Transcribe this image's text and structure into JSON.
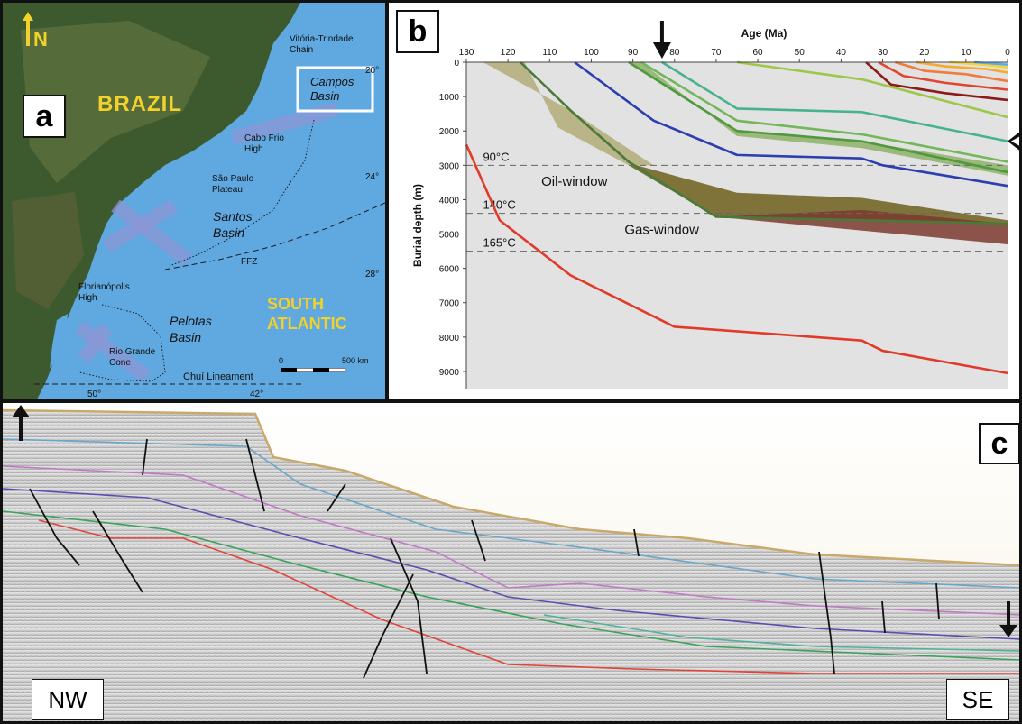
{
  "panels": {
    "a": "a",
    "b": "b",
    "c": "c"
  },
  "map": {
    "north": "N",
    "country": "BRAZIL",
    "ocean_line1": "SOUTH",
    "ocean_line2": "ATLANTIC",
    "chain_line1": "Vitória-Trindade",
    "chain_line2": "Chain",
    "campos_line1": "Campos",
    "campos_line2": "Basin",
    "cabofrio_line1": "Cabo Frio",
    "cabofrio_line2": "High",
    "saopaulo_line1": "São Paulo",
    "saopaulo_line2": "Plateau",
    "santos_line1": "Santos",
    "santos_line2": "Basin",
    "ffz": "FFZ",
    "floripa_line1": "Florianópolis",
    "floripa_line2": "High",
    "pelotas_line1": "Pelotas",
    "pelotas_line2": "Basin",
    "riogrande_line1": "Rio Grande",
    "riogrande_line2": "Cone",
    "chui": "Chuí Lineament",
    "scale_zero": "0",
    "scale_km": "500 km",
    "lat20": "20°",
    "lat24": "24°",
    "lat28": "28°",
    "lon50": "50°",
    "lon42": "42°",
    "colors": {
      "ocean": "#5fa8e0",
      "land": "#3d5a2e",
      "label_yellow": "#f2d12a",
      "basin_box": "#ffffff"
    }
  },
  "chart_data": {
    "type": "line",
    "xlabel": "Age (Ma)",
    "ylabel": "Burial depth (m)",
    "xlim": [
      130,
      0
    ],
    "ylim": [
      0,
      9500
    ],
    "x_ticks": [
      130,
      120,
      110,
      100,
      90,
      80,
      70,
      60,
      50,
      40,
      30,
      20,
      10,
      0
    ],
    "y_ticks": [
      0,
      1000,
      2000,
      3000,
      4000,
      5000,
      6000,
      7000,
      8000,
      9000
    ],
    "isotherms": [
      {
        "label": "90°C",
        "depth": 3000
      },
      {
        "label": "140°C",
        "depth": 4400
      },
      {
        "label": "165°C",
        "depth": 5500
      }
    ],
    "window_labels": [
      {
        "text": "Oil-window",
        "age": 112,
        "depth": 3600
      },
      {
        "text": "Gas-window",
        "age": 92,
        "depth": 5000
      }
    ],
    "bands": [
      {
        "name": "early-olive",
        "color": "#b3ad79",
        "upper": [
          [
            126,
            0
          ],
          [
            105,
            1400
          ],
          [
            85,
            3000
          ]
        ],
        "lower": [
          [
            116,
            0
          ],
          [
            108,
            1900
          ],
          [
            91,
            3000
          ]
        ]
      },
      {
        "name": "oil-window",
        "color": "#6e5f1c",
        "upper": [
          [
            89,
            3000
          ],
          [
            65,
            3800
          ],
          [
            35,
            3950
          ],
          [
            0,
            4600
          ]
        ],
        "lower": [
          [
            91,
            3000
          ],
          [
            70,
            4500
          ],
          [
            0,
            4700
          ]
        ]
      },
      {
        "name": "gas-window",
        "color": "#7b3a2e",
        "upper": [
          [
            70,
            4500
          ],
          [
            35,
            4300
          ],
          [
            0,
            4700
          ]
        ],
        "lower": [
          [
            70,
            4500
          ],
          [
            0,
            5300
          ]
        ]
      },
      {
        "name": "mid-green",
        "color": "#8fb26a",
        "upper": [
          [
            91,
            0
          ],
          [
            65,
            2000
          ],
          [
            35,
            2300
          ],
          [
            0,
            3000
          ]
        ],
        "lower": [
          [
            88,
            0
          ],
          [
            65,
            2150
          ],
          [
            35,
            2500
          ],
          [
            0,
            3300
          ]
        ]
      }
    ],
    "series": [
      {
        "color": "#e23a2a",
        "points": [
          [
            130,
            2400
          ],
          [
            122,
            4600
          ],
          [
            105,
            6200
          ],
          [
            80,
            7700
          ],
          [
            35,
            8100
          ],
          [
            30,
            8400
          ],
          [
            0,
            9050
          ]
        ]
      },
      {
        "color": "#4a7a3a",
        "points": [
          [
            117,
            0
          ],
          [
            105,
            1400
          ],
          [
            91,
            2900
          ],
          [
            70,
            4500
          ],
          [
            0,
            4700
          ]
        ]
      },
      {
        "color": "#2c3fae",
        "points": [
          [
            104,
            0
          ],
          [
            85,
            1700
          ],
          [
            65,
            2700
          ],
          [
            35,
            2800
          ],
          [
            30,
            3000
          ],
          [
            0,
            3600
          ]
        ]
      },
      {
        "color": "#4f9a3e",
        "points": [
          [
            91,
            0
          ],
          [
            65,
            2000
          ],
          [
            35,
            2300
          ],
          [
            0,
            3200
          ]
        ]
      },
      {
        "color": "#72b85a",
        "points": [
          [
            88,
            0
          ],
          [
            65,
            1700
          ],
          [
            35,
            2100
          ],
          [
            0,
            2900
          ]
        ]
      },
      {
        "color": "#46b38a",
        "points": [
          [
            83,
            0
          ],
          [
            65,
            1350
          ],
          [
            35,
            1450
          ],
          [
            0,
            2300
          ]
        ]
      },
      {
        "color": "#9cc74b",
        "points": [
          [
            65,
            0
          ],
          [
            35,
            500
          ],
          [
            0,
            1600
          ]
        ]
      },
      {
        "color": "#8b1a1a",
        "points": [
          [
            34,
            0
          ],
          [
            28,
            650
          ],
          [
            15,
            900
          ],
          [
            0,
            1100
          ]
        ]
      },
      {
        "color": "#e0462f",
        "points": [
          [
            31,
            0
          ],
          [
            25,
            400
          ],
          [
            15,
            600
          ],
          [
            0,
            800
          ]
        ]
      },
      {
        "color": "#f07b3a",
        "points": [
          [
            27,
            0
          ],
          [
            20,
            250
          ],
          [
            10,
            350
          ],
          [
            0,
            550
          ]
        ]
      },
      {
        "color": "#f5a833",
        "points": [
          [
            22,
            0
          ],
          [
            15,
            120
          ],
          [
            5,
            200
          ],
          [
            0,
            300
          ]
        ]
      },
      {
        "color": "#f7d23a",
        "points": [
          [
            14,
            0
          ],
          [
            5,
            80
          ],
          [
            0,
            150
          ]
        ]
      },
      {
        "color": "#5aaee6",
        "points": [
          [
            8,
            0
          ],
          [
            0,
            70
          ]
        ]
      }
    ],
    "age_marker": 83,
    "grid": false
  },
  "section": {
    "left_label": "NW",
    "right_label": "SE",
    "colors": {
      "background": "#d7d7d7",
      "seafloor": "#c9a86a",
      "faults": "#111111"
    }
  }
}
